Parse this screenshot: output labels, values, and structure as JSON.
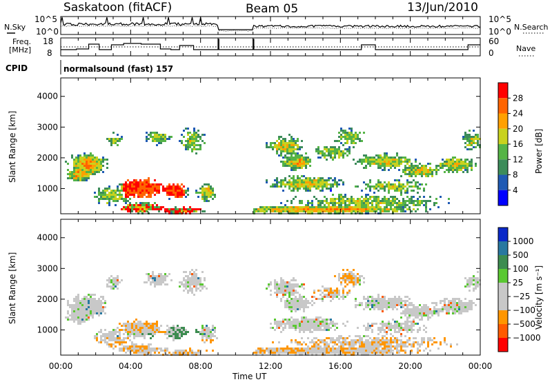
{
  "header": {
    "station": "Saskatoon (fitACF)",
    "beam": "Beam 05",
    "date": "13/Jun/2010"
  },
  "labels": {
    "nsky": "N.Sky",
    "nsearch": "N.Search",
    "freq_line1": "Freq.",
    "freq_line2": "[MHz]",
    "nave": "Nave",
    "cpid": "CPID",
    "cpid_value": "normalsound (fast) 157",
    "slant_range": "Slant Range [km]",
    "power_label": "Power [dB]",
    "velocity_label": "Velocity [m s⁻¹]",
    "time_label": "Time UT"
  },
  "noise_axis": {
    "left_ticks": [
      "10^5",
      "10^0"
    ],
    "right_ticks": [
      "10^5",
      "10^0"
    ]
  },
  "freq_axis": {
    "left_ticks": [
      "18",
      "8"
    ],
    "right_ticks": [
      "60",
      "0"
    ]
  },
  "colors": {
    "power_scale": [
      "#0000ff",
      "#1f5ab4",
      "#3c8c5a",
      "#55b446",
      "#c8d21e",
      "#ffa000",
      "#ff6400",
      "#ff0000"
    ],
    "velocity_scale": [
      "#ff0000",
      "#ff5a00",
      "#ff9600",
      "#c8c8c8",
      "#c8c8c8",
      "#5ac832",
      "#3c8c50",
      "#2878a0",
      "#0a28c8"
    ]
  },
  "chart_data": {
    "type": "heatmap",
    "x_label": "Time UT",
    "x_ticks": [
      "00:00",
      "04:00",
      "08:00",
      "12:00",
      "16:00",
      "20:00",
      "00:00"
    ],
    "x_range": [
      0,
      24
    ],
    "data_gap_hours": [
      9.0,
      11.0
    ],
    "panels": [
      {
        "name": "Power",
        "ylabel": "Slant Range [km]",
        "y_range": [
          180,
          4600
        ],
        "y_ticks": [
          "1000",
          "2000",
          "3000",
          "4000"
        ],
        "colorbar_label": "Power [dB]",
        "colorbar_ticks": [
          "28",
          "24",
          "20",
          "16",
          "12",
          "8",
          "4"
        ]
      },
      {
        "name": "Velocity",
        "ylabel": "Slant Range [km]",
        "y_range": [
          180,
          4600
        ],
        "y_ticks": [
          "1000",
          "2000",
          "3000",
          "4000"
        ],
        "colorbar_label": "Velocity [m s⁻¹]",
        "colorbar_ticks": [
          "1000",
          "500",
          "100",
          "25",
          "−25",
          "−100",
          "−500",
          "−1000"
        ]
      }
    ]
  }
}
